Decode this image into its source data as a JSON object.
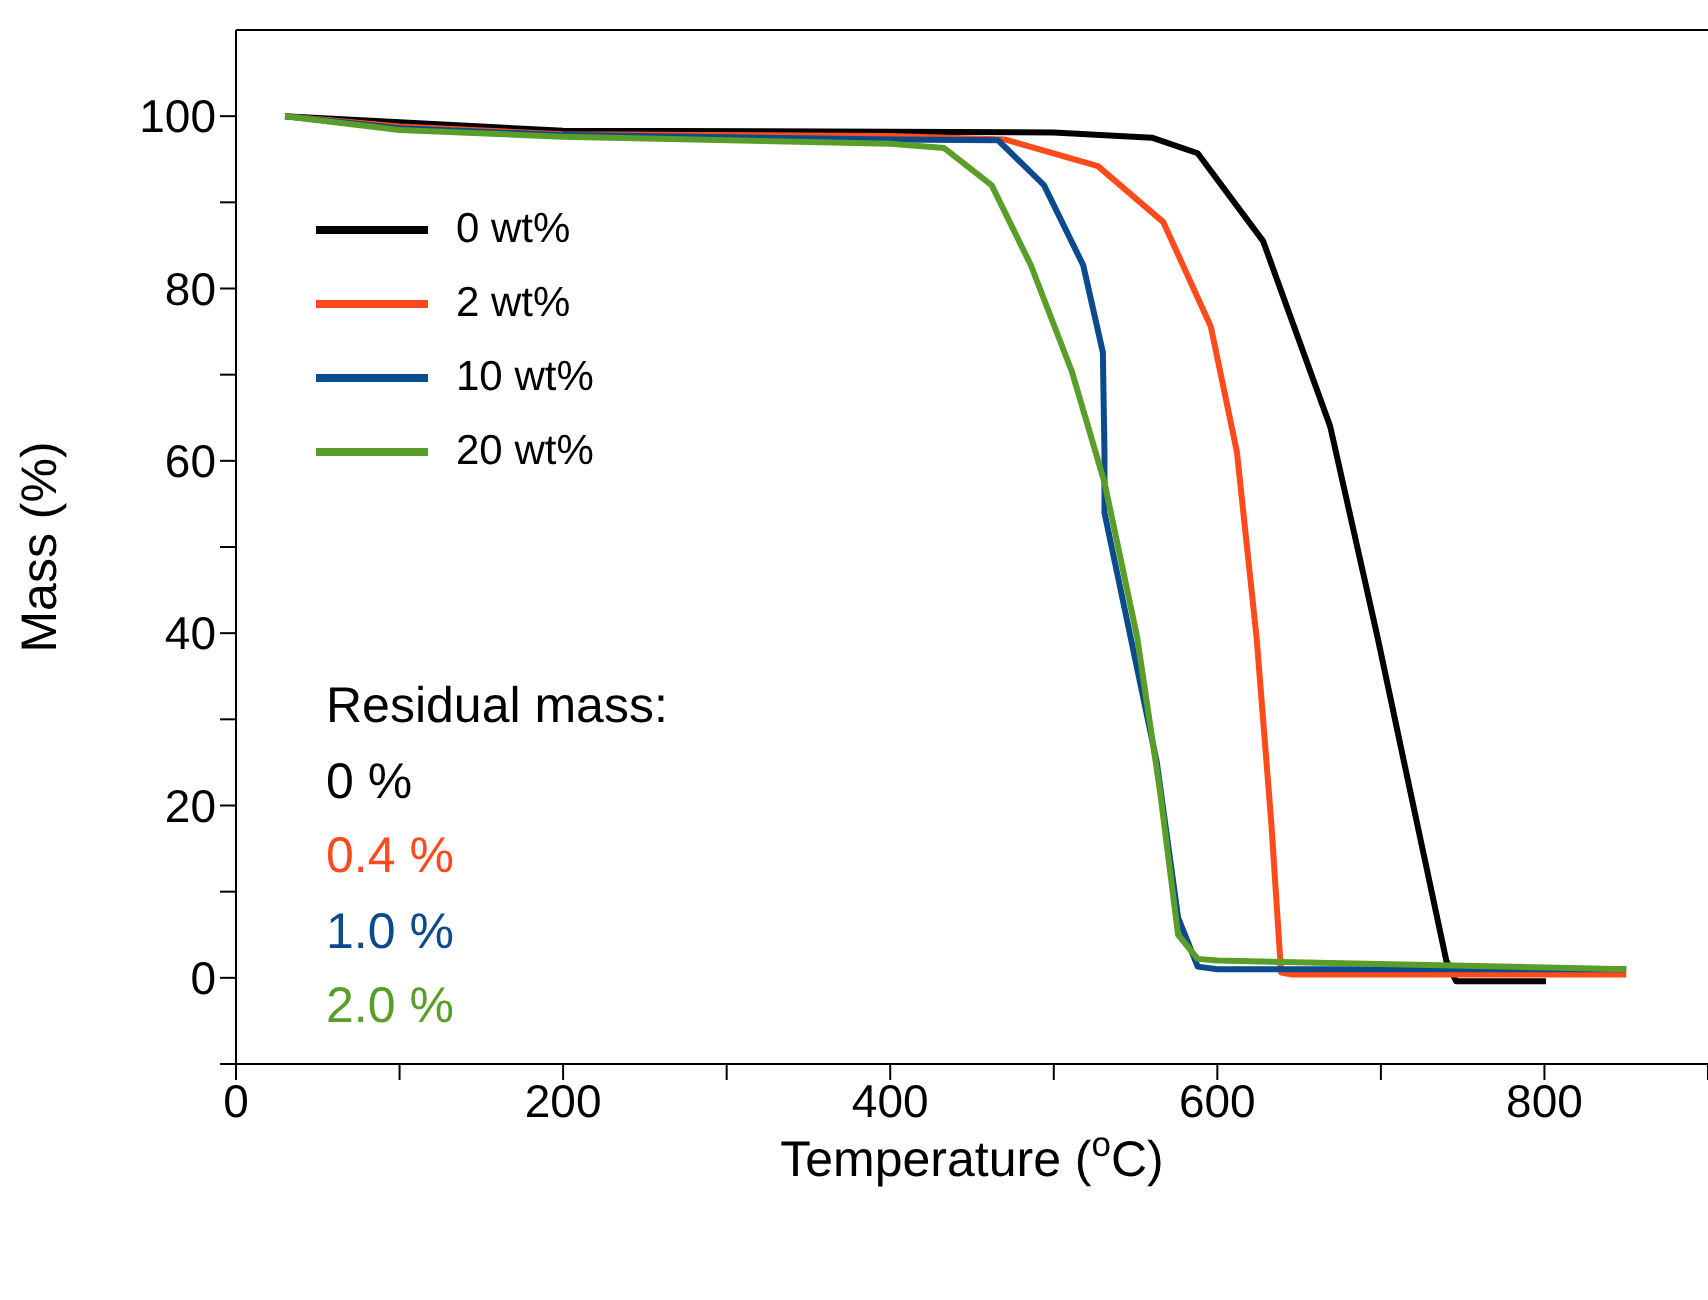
{
  "chart_data": {
    "type": "line",
    "xlabel": "Temperature ($^{o}$C)",
    "ylabel": "Mass (%)",
    "xlim": [
      0,
      900
    ],
    "ylim": [
      -10,
      110
    ],
    "xticks": [
      0,
      {
        "value": 100,
        "label": null
      },
      200,
      {
        "value": 300,
        "label": null
      },
      400,
      {
        "value": 500,
        "label": null
      },
      600,
      {
        "value": 700,
        "label": null
      },
      800,
      {
        "value": 900,
        "label": null
      }
    ],
    "yticks": [
      {
        "value": -10,
        "label": null
      },
      0,
      {
        "value": 10,
        "label": null
      },
      20,
      {
        "value": 30,
        "label": null
      },
      40,
      {
        "value": 50,
        "label": null
      },
      60,
      {
        "value": 70,
        "label": null
      },
      80,
      {
        "value": 90,
        "label": null
      },
      100
    ],
    "legend": "top left",
    "marker": "none",
    "line_style": "solid",
    "series": [
      {
        "name": "0 wt%",
        "color": "#000000",
        "x": [
          30,
          100,
          200,
          400,
          500,
          560,
          588,
          628,
          669,
          698,
          718,
          740,
          746,
          801
        ],
        "values": [
          100,
          99.3,
          98.3,
          98.2,
          98.1,
          97.5,
          95.7,
          85.5,
          64,
          39.5,
          21.6,
          2,
          -0.4,
          -0.4
        ]
      },
      {
        "name": "2 wt%",
        "color": "#ff4a1c",
        "x": [
          30,
          100,
          200,
          400,
          470,
          527,
          567,
          596,
          612,
          624,
          633,
          639,
          645,
          850
        ],
        "values": [
          100,
          98.8,
          97.9,
          97.7,
          97.3,
          94.2,
          87.7,
          75.6,
          61,
          39.5,
          18,
          0.6,
          0.4,
          0.4
        ]
      },
      {
        "name": "10 wt%",
        "color": "#0b4a8c",
        "x": [
          30,
          100,
          200,
          400,
          466,
          494,
          518,
          530,
          531,
          531,
          547,
          563,
          576,
          588,
          600,
          850
        ],
        "values": [
          100,
          98.6,
          97.8,
          97.3,
          97.2,
          92,
          82.7,
          72.6,
          61,
          54,
          39.5,
          25,
          7,
          1.3,
          1,
          1
        ]
      },
      {
        "name": "20 wt%",
        "color": "#5a9e2a",
        "x": [
          30,
          100,
          200,
          400,
          433,
          462,
          486,
          511,
          531,
          551,
          565,
          576,
          588,
          600,
          850
        ],
        "values": [
          100,
          98.4,
          97.6,
          96.8,
          96.3,
          92,
          82.7,
          70.4,
          57.5,
          39.5,
          21.6,
          5,
          2.2,
          2,
          1
        ]
      }
    ],
    "annotations": [
      "Residual mass:",
      "0 %",
      "0.4 %",
      "1.0 %",
      "2.0 %"
    ]
  }
}
